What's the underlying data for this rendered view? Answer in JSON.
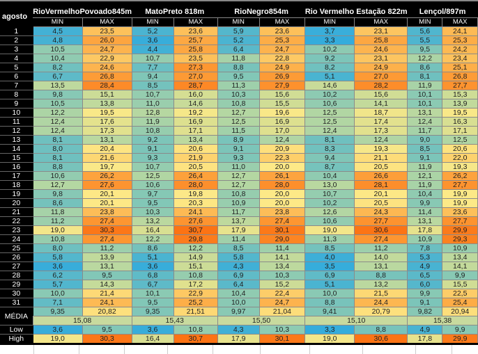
{
  "sheet": {
    "corner_label": "agosto",
    "sub_labels": {
      "min": "MIN",
      "max": "MAX"
    },
    "stations": [
      "RioVermelhoPovoado845m",
      "MatoPreto 818m",
      "RioNegro854m",
      "Rio Vermelho Estação 822m",
      "Lençol/897m"
    ],
    "rows": [
      {
        "day": "1",
        "v": [
          "4,5",
          "23,5",
          "5,2",
          "23,6",
          "5,9",
          "23,6",
          "3,7",
          "23,1",
          "5,6",
          "24,1"
        ]
      },
      {
        "day": "2",
        "v": [
          "4,8",
          "26,0",
          "3,6",
          "25,7",
          "5,2",
          "25,3",
          "3,3",
          "25,8",
          "5,5",
          "25,3"
        ]
      },
      {
        "day": "3",
        "v": [
          "10,5",
          "24,7",
          "4,4",
          "25,8",
          "6,4",
          "24,7",
          "10,2",
          "24,6",
          "9,5",
          "24,2"
        ]
      },
      {
        "day": "4",
        "v": [
          "10,4",
          "22,9",
          "10,7",
          "23,5",
          "11,8",
          "22,8",
          "9,2",
          "23,1",
          "12,2",
          "23,4"
        ]
      },
      {
        "day": "5",
        "v": [
          "8,2",
          "24,6",
          "7,7",
          "27,3",
          "8,8",
          "24,9",
          "8,2",
          "24,9",
          "8,6",
          "25,1"
        ]
      },
      {
        "day": "6",
        "v": [
          "6,7",
          "26,8",
          "9,4",
          "27,0",
          "9,5",
          "26,9",
          "5,1",
          "27,0",
          "8,1",
          "26,8"
        ]
      },
      {
        "day": "7",
        "v": [
          "13,5",
          "28,4",
          "8,5",
          "28,7",
          "11,3",
          "27,9",
          "14,6",
          "28,2",
          "11,9",
          "27,7"
        ]
      },
      {
        "day": "8",
        "v": [
          "9,8",
          "15,1",
          "10,7",
          "16,0",
          "10,3",
          "15,6",
          "10,2",
          "15,6",
          "10,1",
          "15,3"
        ]
      },
      {
        "day": "9",
        "v": [
          "10,5",
          "13,8",
          "11,0",
          "14,6",
          "10,8",
          "15,5",
          "10,6",
          "14,1",
          "10,1",
          "13,9"
        ]
      },
      {
        "day": "10",
        "v": [
          "12,2",
          "19,5",
          "12,8",
          "19,2",
          "12,7",
          "19,6",
          "12,5",
          "18,7",
          "13,1",
          "19,5"
        ]
      },
      {
        "day": "11",
        "v": [
          "12,4",
          "17,6",
          "11,9",
          "16,9",
          "12,5",
          "16,9",
          "12,5",
          "17,4",
          "12,4",
          "16,3"
        ]
      },
      {
        "day": "12",
        "v": [
          "12,4",
          "17,3",
          "10,8",
          "17,1",
          "11,5",
          "17,0",
          "12,4",
          "17,3",
          "11,7",
          "17,1"
        ]
      },
      {
        "day": "13",
        "v": [
          "8,1",
          "13,1",
          "9,2",
          "13,4",
          "8,9",
          "12,4",
          "8,1",
          "12,4",
          "9,0",
          "12,5"
        ]
      },
      {
        "day": "14",
        "v": [
          "8,0",
          "20,4",
          "9,1",
          "20,6",
          "9,1",
          "20,9",
          "8,3",
          "19,3",
          "8,5",
          "20,6"
        ]
      },
      {
        "day": "15",
        "v": [
          "8,1",
          "21,6",
          "9,3",
          "21,9",
          "9,3",
          "22,3",
          "9,4",
          "21,1",
          "9,1",
          "22,0"
        ]
      },
      {
        "day": "16",
        "v": [
          "8,8",
          "19,7",
          "10,7",
          "20,5",
          "11,0",
          "20,0",
          "8,7",
          "20,5",
          "11,9",
          "19,3"
        ]
      },
      {
        "day": "17",
        "v": [
          "10,6",
          "26,2",
          "12,5",
          "26,4",
          "12,7",
          "26,1",
          "10,4",
          "26,6",
          "12,1",
          "26,2"
        ]
      },
      {
        "day": "18",
        "v": [
          "12,7",
          "27,6",
          "10,6",
          "28,0",
          "12,7",
          "28,0",
          "13,0",
          "28,1",
          "11,9",
          "27,7"
        ]
      },
      {
        "day": "19",
        "v": [
          "9,8",
          "20,1",
          "9,7",
          "19,8",
          "10,8",
          "20,0",
          "10,7",
          "20,1",
          "10,4",
          "19,9"
        ]
      },
      {
        "day": "20",
        "v": [
          "8,6",
          "20,1",
          "9,5",
          "20,3",
          "10,9",
          "20,0",
          "10,2",
          "20,5",
          "9,9",
          "19,9"
        ]
      },
      {
        "day": "21",
        "v": [
          "11,8",
          "23,8",
          "10,3",
          "24,1",
          "11,7",
          "23,8",
          "12,6",
          "24,3",
          "11,4",
          "23,6"
        ]
      },
      {
        "day": "22",
        "v": [
          "11,2",
          "27,4",
          "13,2",
          "27,6",
          "13,7",
          "27,4",
          "10,6",
          "27,7",
          "13,1",
          "27,7"
        ]
      },
      {
        "day": "23",
        "v": [
          "19,0",
          "30,3",
          "16,4",
          "30,7",
          "17,9",
          "30,1",
          "19,0",
          "30,6",
          "17,8",
          "29,9"
        ]
      },
      {
        "day": "24",
        "v": [
          "10,8",
          "27,4",
          "12,2",
          "29,8",
          "11,4",
          "29,0",
          "11,3",
          "27,4",
          "10,9",
          "29,3"
        ]
      },
      {
        "day": "25",
        "v": [
          "8,0",
          "11,2",
          "8,6",
          "12,2",
          "8,5",
          "11,4",
          "8,5",
          "11,2",
          "7,8",
          "10,9"
        ]
      },
      {
        "day": "26",
        "v": [
          "5,8",
          "13,9",
          "5,1",
          "14,9",
          "5,8",
          "14,1",
          "4,0",
          "14,0",
          "5,3",
          "13,4"
        ]
      },
      {
        "day": "27",
        "v": [
          "3,6",
          "13,1",
          "3,6",
          "15,1",
          "4,3",
          "13,4",
          "3,5",
          "13,1",
          "4,9",
          "14,1"
        ]
      },
      {
        "day": "28",
        "v": [
          "6,2",
          "9,5",
          "6,8",
          "10,8",
          "6,9",
          "10,3",
          "6,9",
          "8,8",
          "6,5",
          "9,9"
        ]
      },
      {
        "day": "29",
        "v": [
          "5,7",
          "14,3",
          "6,7",
          "17,2",
          "6,4",
          "15,2",
          "5,1",
          "13,2",
          "6,0",
          "15,5"
        ]
      },
      {
        "day": "30",
        "v": [
          "10,0",
          "21,4",
          "10,1",
          "22,9",
          "10,4",
          "22,4",
          "10,0",
          "21,5",
          "9,9",
          "22,5"
        ]
      },
      {
        "day": "31",
        "v": [
          "7,1",
          "24,1",
          "9,5",
          "25,2",
          "10,0",
          "24,7",
          "8,8",
          "24,4",
          "9,1",
          "25,4"
        ]
      }
    ],
    "media": {
      "label": "MÉDIA",
      "v": [
        "9,35",
        "20,82",
        "9,35",
        "21,51",
        "9,97",
        "21,04",
        "9,41",
        "20,79",
        "9,82",
        "20,94"
      ]
    },
    "overall_avg": [
      "15,08",
      "15,43",
      "15,50",
      "15,10",
      "15,38"
    ],
    "low": {
      "label": "Low",
      "v": [
        "3,6",
        "9,5",
        "3,6",
        "10,8",
        "4,3",
        "10,3",
        "3,3",
        "8,8",
        "4,9",
        "9,9"
      ]
    },
    "high": {
      "label": "High",
      "v": [
        "19,0",
        "30,3",
        "16,4",
        "30,7",
        "17,9",
        "30,1",
        "19,0",
        "30,6",
        "17,8",
        "29,9"
      ]
    }
  }
}
